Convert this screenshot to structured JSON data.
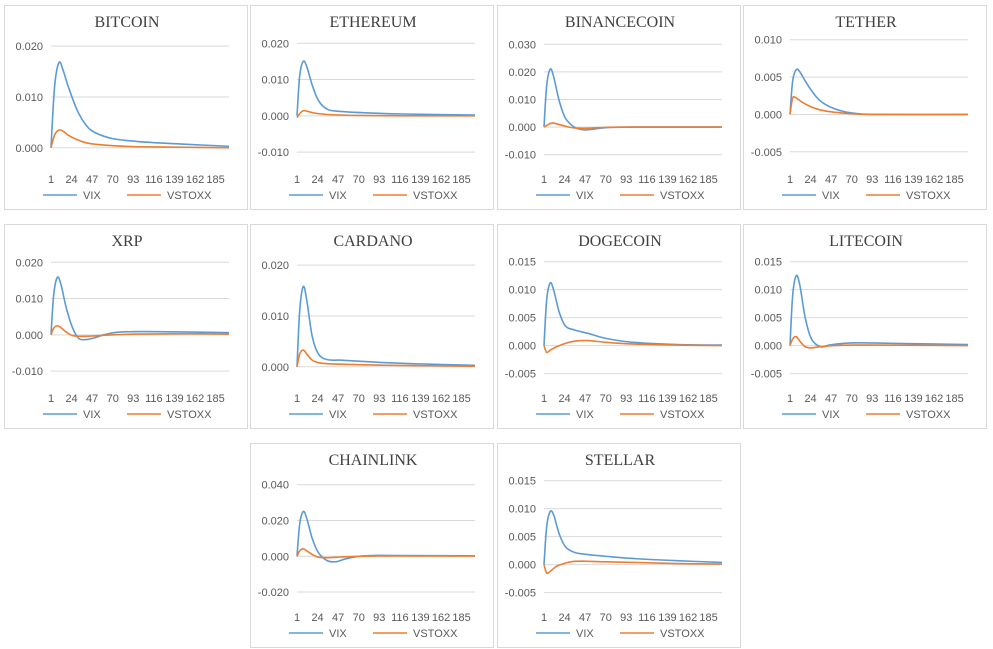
{
  "x_tick_labels": [
    "1",
    "24",
    "47",
    "70",
    "93",
    "116",
    "139",
    "162",
    "185"
  ],
  "colors": {
    "vix": "#5b9bd5",
    "vstoxx": "#ed7d31",
    "grid": "#d9d9d9",
    "text": "#595959"
  },
  "chart_data": [
    {
      "type": "line",
      "title": "BITCOIN",
      "x_range": [
        1,
        200
      ],
      "ylim": [
        -0.003,
        0.022
      ],
      "y_ticks": [
        0.0,
        0.01,
        0.02
      ],
      "y_tick_labels": [
        "0.000",
        "0.010",
        "0.020"
      ],
      "series": [
        {
          "name": "VIX",
          "x": [
            1,
            5,
            10,
            15,
            20,
            30,
            40,
            50,
            70,
            100,
            150,
            200
          ],
          "values": [
            0.0,
            0.012,
            0.0168,
            0.015,
            0.0122,
            0.0075,
            0.0045,
            0.003,
            0.0018,
            0.0012,
            0.0007,
            0.0003
          ]
        },
        {
          "name": "VSTOXX",
          "x": [
            1,
            5,
            10,
            15,
            20,
            30,
            40,
            50,
            70,
            100,
            150,
            200
          ],
          "values": [
            0.0,
            0.0025,
            0.0035,
            0.0032,
            0.0025,
            0.0016,
            0.001,
            0.0007,
            0.0004,
            0.0002,
            0.0001,
            0.0
          ]
        }
      ]
    },
    {
      "type": "line",
      "title": "ETHEREUM",
      "x_range": [
        1,
        200
      ],
      "ylim": [
        -0.013,
        0.022
      ],
      "y_ticks": [
        -0.01,
        0.0,
        0.01,
        0.02
      ],
      "y_tick_labels": [
        "-0.010",
        "0.000",
        "0.010",
        "0.020"
      ],
      "series": [
        {
          "name": "VIX",
          "x": [
            1,
            4,
            8,
            12,
            18,
            25,
            35,
            50,
            80,
            120,
            200
          ],
          "values": [
            0.0,
            0.011,
            0.015,
            0.0135,
            0.0085,
            0.0042,
            0.0018,
            0.0012,
            0.0008,
            0.0005,
            0.0002
          ]
        },
        {
          "name": "VSTOXX",
          "x": [
            1,
            4,
            8,
            12,
            18,
            25,
            40,
            70,
            120,
            200
          ],
          "values": [
            -0.0005,
            0.0006,
            0.0014,
            0.0013,
            0.0009,
            0.0006,
            0.0003,
            0.0001,
            0.0,
            0.0
          ]
        }
      ]
    },
    {
      "type": "line",
      "title": "BINANCECOIN",
      "x_range": [
        1,
        200
      ],
      "ylim": [
        -0.013,
        0.033
      ],
      "y_ticks": [
        -0.01,
        0.0,
        0.01,
        0.02,
        0.03
      ],
      "y_tick_labels": [
        "-0.010",
        "0.000",
        "0.010",
        "0.020",
        "0.030"
      ],
      "series": [
        {
          "name": "VIX",
          "x": [
            1,
            4,
            8,
            12,
            18,
            25,
            35,
            45,
            55,
            70,
            100,
            200
          ],
          "values": [
            0.0,
            0.015,
            0.021,
            0.018,
            0.0095,
            0.0032,
            0.0,
            -0.001,
            -0.0008,
            -0.0002,
            0.0,
            0.0
          ]
        },
        {
          "name": "VSTOXX",
          "x": [
            1,
            5,
            10,
            15,
            25,
            35,
            50,
            70,
            100,
            200
          ],
          "values": [
            0.0,
            0.0008,
            0.0015,
            0.0012,
            0.0003,
            -0.0003,
            -0.0004,
            -0.0001,
            0.0,
            0.0
          ]
        }
      ]
    },
    {
      "type": "line",
      "title": "TETHER",
      "x_range": [
        1,
        200
      ],
      "ylim": [
        -0.0065,
        0.0105
      ],
      "y_ticks": [
        -0.005,
        0.0,
        0.005,
        0.01
      ],
      "y_tick_labels": [
        "-0.005",
        "0.000",
        "0.005",
        "0.010"
      ],
      "series": [
        {
          "name": "VIX",
          "x": [
            1,
            4,
            8,
            12,
            18,
            25,
            35,
            50,
            70,
            100,
            200
          ],
          "values": [
            0.0,
            0.0045,
            0.006,
            0.0057,
            0.0045,
            0.0032,
            0.0018,
            0.0008,
            0.0002,
            0.0,
            0.0
          ]
        },
        {
          "name": "VSTOXX",
          "x": [
            1,
            4,
            8,
            15,
            25,
            35,
            50,
            70,
            100,
            200
          ],
          "values": [
            0.0,
            0.0022,
            0.0022,
            0.0016,
            0.001,
            0.0006,
            0.0003,
            0.0001,
            0.0,
            0.0
          ]
        }
      ]
    },
    {
      "type": "line",
      "title": "XRP",
      "x_range": [
        1,
        200
      ],
      "ylim": [
        -0.013,
        0.022
      ],
      "y_ticks": [
        -0.01,
        0.0,
        0.01,
        0.02
      ],
      "y_tick_labels": [
        "-0.010",
        "0.000",
        "0.010",
        "0.020"
      ],
      "series": [
        {
          "name": "VIX",
          "x": [
            1,
            4,
            8,
            12,
            18,
            25,
            32,
            40,
            50,
            60,
            75,
            100,
            150,
            200
          ],
          "values": [
            0.0,
            0.011,
            0.0158,
            0.014,
            0.0075,
            0.002,
            -0.001,
            -0.0013,
            -0.0008,
            0.0,
            0.0007,
            0.0009,
            0.0008,
            0.0006
          ]
        },
        {
          "name": "VSTOXX",
          "x": [
            1,
            4,
            8,
            12,
            18,
            25,
            35,
            50,
            70,
            100,
            150,
            200
          ],
          "values": [
            0.0,
            0.0018,
            0.0025,
            0.002,
            0.0008,
            -0.0002,
            -0.0004,
            -0.0003,
            0.0,
            0.0002,
            0.0003,
            0.0002
          ]
        }
      ]
    },
    {
      "type": "line",
      "title": "CARDANO",
      "x_range": [
        1,
        200
      ],
      "ylim": [
        -0.003,
        0.022
      ],
      "y_ticks": [
        0.0,
        0.01,
        0.02
      ],
      "y_tick_labels": [
        "0.000",
        "0.010",
        "0.020"
      ],
      "series": [
        {
          "name": "VIX",
          "x": [
            1,
            4,
            8,
            12,
            18,
            25,
            35,
            50,
            70,
            100,
            150,
            200
          ],
          "values": [
            0.0,
            0.011,
            0.0158,
            0.013,
            0.006,
            0.0025,
            0.0014,
            0.0013,
            0.0011,
            0.0008,
            0.0005,
            0.0003
          ]
        },
        {
          "name": "VSTOXX",
          "x": [
            1,
            4,
            8,
            12,
            18,
            25,
            35,
            50,
            70,
            100,
            150,
            200
          ],
          "values": [
            0.0,
            0.0025,
            0.0033,
            0.0025,
            0.0013,
            0.0008,
            0.0006,
            0.0005,
            0.0004,
            0.0003,
            0.0002,
            0.0001
          ]
        }
      ]
    },
    {
      "type": "line",
      "title": "DOGECOIN",
      "x_range": [
        1,
        200
      ],
      "ylim": [
        -0.0065,
        0.0162
      ],
      "y_ticks": [
        -0.005,
        0.0,
        0.005,
        0.01,
        0.015
      ],
      "y_tick_labels": [
        "-0.005",
        "0.000",
        "0.005",
        "0.010",
        "0.015"
      ],
      "series": [
        {
          "name": "VIX",
          "x": [
            1,
            4,
            8,
            12,
            18,
            25,
            35,
            50,
            70,
            100,
            150,
            200
          ],
          "values": [
            0.0,
            0.0082,
            0.0112,
            0.0098,
            0.006,
            0.0035,
            0.0028,
            0.0022,
            0.0013,
            0.0006,
            0.0002,
            0.0001
          ]
        },
        {
          "name": "VSTOXX",
          "x": [
            1,
            4,
            8,
            15,
            25,
            35,
            50,
            70,
            100,
            150,
            200
          ],
          "values": [
            0.0,
            -0.0012,
            -0.0008,
            -0.0002,
            0.0004,
            0.0008,
            0.0009,
            0.0006,
            0.0003,
            0.0001,
            0.0
          ]
        }
      ]
    },
    {
      "type": "line",
      "title": "LITECOIN",
      "x_range": [
        1,
        200
      ],
      "ylim": [
        -0.0065,
        0.0162
      ],
      "y_ticks": [
        -0.005,
        0.0,
        0.005,
        0.01,
        0.015
      ],
      "y_tick_labels": [
        "-0.005",
        "0.000",
        "0.005",
        "0.010",
        "0.015"
      ],
      "series": [
        {
          "name": "VIX",
          "x": [
            1,
            4,
            8,
            12,
            18,
            25,
            35,
            45,
            60,
            80,
            120,
            200
          ],
          "values": [
            0.0,
            0.009,
            0.0125,
            0.0108,
            0.005,
            0.0012,
            -0.0002,
            0.0001,
            0.0004,
            0.0005,
            0.0004,
            0.0002
          ]
        },
        {
          "name": "VSTOXX",
          "x": [
            1,
            4,
            8,
            12,
            18,
            25,
            35,
            50,
            70,
            100,
            200
          ],
          "values": [
            0.0,
            0.0012,
            0.0016,
            0.0008,
            -0.0002,
            -0.0004,
            -0.0002,
            0.0,
            0.0001,
            0.0001,
            0.0
          ]
        }
      ]
    },
    {
      "type": "line",
      "title": "CHAINLINK",
      "x_range": [
        1,
        200
      ],
      "ylim": [
        -0.025,
        0.046
      ],
      "y_ticks": [
        -0.02,
        0.0,
        0.02,
        0.04
      ],
      "y_tick_labels": [
        "-0.020",
        "0.000",
        "0.020",
        "0.040"
      ],
      "series": [
        {
          "name": "VIX",
          "x": [
            1,
            4,
            8,
            12,
            18,
            25,
            35,
            45,
            55,
            70,
            90,
            120,
            200
          ],
          "values": [
            0.0,
            0.018,
            0.025,
            0.021,
            0.01,
            0.002,
            -0.0025,
            -0.003,
            -0.0015,
            0.0,
            0.0005,
            0.0004,
            0.0003
          ]
        },
        {
          "name": "VSTOXX",
          "x": [
            1,
            4,
            8,
            12,
            18,
            25,
            35,
            50,
            70,
            100,
            200
          ],
          "values": [
            0.0,
            0.003,
            0.0042,
            0.003,
            0.001,
            -0.0005,
            -0.0008,
            -0.0004,
            0.0,
            0.0002,
            0.0001
          ]
        }
      ]
    },
    {
      "type": "line",
      "title": "STELLAR",
      "x_range": [
        1,
        200
      ],
      "ylim": [
        -0.0065,
        0.0162
      ],
      "y_ticks": [
        -0.005,
        0.0,
        0.005,
        0.01,
        0.015
      ],
      "y_tick_labels": [
        "-0.005",
        "0.000",
        "0.005",
        "0.010",
        "0.015"
      ],
      "series": [
        {
          "name": "VIX",
          "x": [
            1,
            4,
            8,
            12,
            18,
            25,
            35,
            50,
            70,
            100,
            150,
            200
          ],
          "values": [
            0.0,
            0.0068,
            0.0095,
            0.0088,
            0.0055,
            0.0032,
            0.0022,
            0.0018,
            0.0015,
            0.0011,
            0.0007,
            0.0004
          ]
        },
        {
          "name": "VSTOXX",
          "x": [
            1,
            4,
            8,
            15,
            25,
            35,
            50,
            70,
            100,
            150,
            200
          ],
          "values": [
            0.0,
            -0.0015,
            -0.0012,
            -0.0003,
            0.0003,
            0.0006,
            0.0006,
            0.0005,
            0.0004,
            0.0002,
            0.0001
          ]
        }
      ]
    }
  ]
}
